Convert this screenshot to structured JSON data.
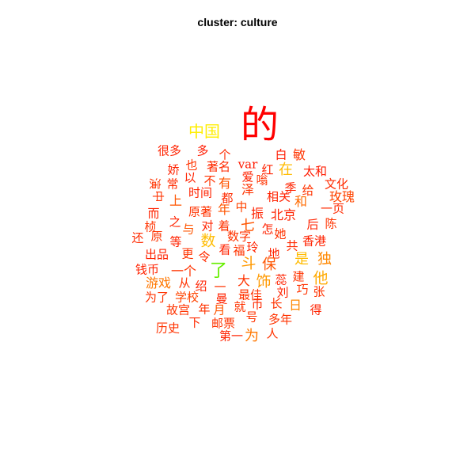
{
  "title": "cluster: culture",
  "words": [
    {
      "text": "的",
      "color": "#ff0000"
    },
    {
      "text": "中国",
      "color": "#ffee00"
    },
    {
      "text": "很多",
      "color": "#ff2200"
    },
    {
      "text": "多",
      "color": "#ff1a00"
    },
    {
      "text": "个",
      "color": "#ff2a00"
    },
    {
      "text": "白",
      "color": "#ff1a00"
    },
    {
      "text": "敏",
      "color": "#ff3300"
    },
    {
      "text": "娇",
      "color": "#ff2200"
    },
    {
      "text": "也",
      "color": "#ff3300"
    },
    {
      "text": "著名",
      "color": "#ff2a00"
    },
    {
      "text": "var",
      "color": "#ff1a00"
    },
    {
      "text": "红",
      "color": "#ff2200"
    },
    {
      "text": "在",
      "color": "#ffbb00"
    },
    {
      "text": "太和",
      "color": "#ff1a00"
    },
    {
      "text": "演",
      "color": "#ff3300"
    },
    {
      "text": "常",
      "color": "#ff2a00"
    },
    {
      "text": "以",
      "color": "#ff2200"
    },
    {
      "text": "不",
      "color": "#ff3300"
    },
    {
      "text": "有",
      "color": "#ff5500"
    },
    {
      "text": "爱",
      "color": "#ff2200"
    },
    {
      "text": "嗡",
      "color": "#ff3300"
    },
    {
      "text": "季",
      "color": "#ff2200"
    },
    {
      "text": "文化",
      "color": "#ff2a00"
    },
    {
      "text": "中",
      "color": "#ff3300"
    },
    {
      "text": "时间",
      "color": "#ff2200"
    },
    {
      "text": "都",
      "color": "#ff2a00"
    },
    {
      "text": "泽",
      "color": "#ff3300"
    },
    {
      "text": "相关",
      "color": "#ff2200"
    },
    {
      "text": "和",
      "color": "#ff6a00"
    },
    {
      "text": "给",
      "color": "#ff3300"
    },
    {
      "text": "玫瑰",
      "color": "#ff4400"
    },
    {
      "text": "上",
      "color": "#ff5500"
    },
    {
      "text": "而",
      "color": "#ff2200"
    },
    {
      "text": "原著",
      "color": "#ff3300"
    },
    {
      "text": "年",
      "color": "#ff5500"
    },
    {
      "text": "中",
      "color": "#ff4400"
    },
    {
      "text": "振",
      "color": "#ff2200"
    },
    {
      "text": "北京",
      "color": "#ff2200"
    },
    {
      "text": "一页",
      "color": "#ff2a00"
    },
    {
      "text": "桢",
      "color": "#ff3300"
    },
    {
      "text": "之",
      "color": "#ff2200"
    },
    {
      "text": "与",
      "color": "#ff5500"
    },
    {
      "text": "对",
      "color": "#ff2200"
    },
    {
      "text": "着",
      "color": "#ff3300"
    },
    {
      "text": "七",
      "color": "#ff5500"
    },
    {
      "text": "怎",
      "color": "#ff2200"
    },
    {
      "text": "她",
      "color": "#ff3300"
    },
    {
      "text": "后",
      "color": "#ff2200"
    },
    {
      "text": "陈",
      "color": "#ff3300"
    },
    {
      "text": "还",
      "color": "#ff2a00"
    },
    {
      "text": "原",
      "color": "#ff3300"
    },
    {
      "text": "等",
      "color": "#ff2200"
    },
    {
      "text": "数",
      "color": "#ffbb00"
    },
    {
      "text": "数字",
      "color": "#ff3300"
    },
    {
      "text": "玲",
      "color": "#ff2200"
    },
    {
      "text": "共",
      "color": "#ff2a00"
    },
    {
      "text": "香港",
      "color": "#ff2200"
    },
    {
      "text": "出品",
      "color": "#ff2200"
    },
    {
      "text": "更",
      "color": "#ff3300"
    },
    {
      "text": "令",
      "color": "#ff2a00"
    },
    {
      "text": "看",
      "color": "#ff2200"
    },
    {
      "text": "福",
      "color": "#ff3300"
    },
    {
      "text": "地",
      "color": "#ff2200"
    },
    {
      "text": "是",
      "color": "#ffbb00"
    },
    {
      "text": "独",
      "color": "#ff8800"
    },
    {
      "text": "钱币",
      "color": "#ff2200"
    },
    {
      "text": "一个",
      "color": "#ff3300"
    },
    {
      "text": "了",
      "color": "#66ee00"
    },
    {
      "text": "斗",
      "color": "#ff9900"
    },
    {
      "text": "保",
      "color": "#ff5500"
    },
    {
      "text": "他",
      "color": "#ffaa00"
    },
    {
      "text": "游戏",
      "color": "#ff7700"
    },
    {
      "text": "从",
      "color": "#ff3300"
    },
    {
      "text": "绍",
      "color": "#ff2200"
    },
    {
      "text": "大",
      "color": "#ff3300"
    },
    {
      "text": "饰",
      "color": "#ff9900"
    },
    {
      "text": "蕊",
      "color": "#ff2200"
    },
    {
      "text": "建",
      "color": "#ff3300"
    },
    {
      "text": "巧",
      "color": "#ff3300"
    },
    {
      "text": "为了",
      "color": "#ff3300"
    },
    {
      "text": "学校",
      "color": "#ff4400"
    },
    {
      "text": "一",
      "color": "#ff3300"
    },
    {
      "text": "最佳",
      "color": "#ff3300"
    },
    {
      "text": "刘",
      "color": "#ff2200"
    },
    {
      "text": "张",
      "color": "#ff3300"
    },
    {
      "text": "故宫",
      "color": "#ff3300"
    },
    {
      "text": "年",
      "color": "#ff3300"
    },
    {
      "text": "月",
      "color": "#ff5500"
    },
    {
      "text": "曼",
      "color": "#ff2200"
    },
    {
      "text": "就",
      "color": "#ff3300"
    },
    {
      "text": "币",
      "color": "#ff2a00"
    },
    {
      "text": "长",
      "color": "#ff3300"
    },
    {
      "text": "日",
      "color": "#ff8800"
    },
    {
      "text": "得",
      "color": "#ff2200"
    },
    {
      "text": "历史",
      "color": "#ff3300"
    },
    {
      "text": "下",
      "color": "#ff2a00"
    },
    {
      "text": "邮票",
      "color": "#ff3300"
    },
    {
      "text": "号",
      "color": "#ff3300"
    },
    {
      "text": "多年",
      "color": "#ff3300"
    },
    {
      "text": "第一",
      "color": "#ff2200"
    },
    {
      "text": "为",
      "color": "#ff7700"
    },
    {
      "text": "人",
      "color": "#ff3300"
    }
  ]
}
